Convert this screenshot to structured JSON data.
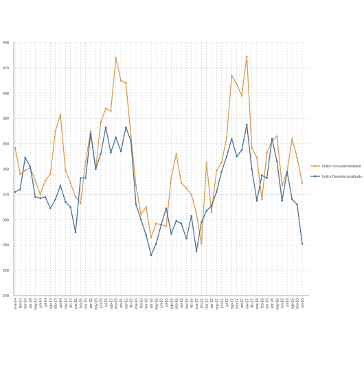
{
  "chart_data": {
    "type": "line",
    "title": "",
    "xlabel": "",
    "ylabel": "",
    "ylim": [
      240,
      440
    ],
    "yticks": [
      240,
      260,
      280,
      300,
      320,
      340,
      360,
      380,
      400,
      420,
      440
    ],
    "grid": true,
    "legend_position": "right",
    "categories": [
      "ene-14",
      "feb-14",
      "mar-14",
      "abr-14",
      "may-14",
      "jun-14",
      "jul-14",
      "ago-14",
      "sep-14",
      "oct-14",
      "nov-14",
      "dic-14",
      "ene-15",
      "feb-15",
      "mar-15",
      "abr-15",
      "may-15",
      "jun-15",
      "jul-15",
      "ago-15",
      "sep-15",
      "oct-15",
      "nov-15",
      "dic-15",
      "ene-16",
      "feb-16",
      "mar-16",
      "abr-16",
      "may-16",
      "jun-16",
      "jul-16",
      "ago-16",
      "sep-16",
      "oct-16",
      "nov-16",
      "dic-16",
      "ene-17",
      "feb-17",
      "mar-17",
      "abr-17",
      "may-17",
      "jun-17",
      "jul-17",
      "ago-17",
      "sep-17",
      "oct-17",
      "nov-17",
      "dic-17",
      "ene-18",
      "feb-18",
      "mar-18",
      "abr-18",
      "may-18",
      "jun-18",
      "jul-18",
      "ago-18",
      "sep-18",
      "oct-18"
    ],
    "series": [
      {
        "name": "Indice con Estacionalidad",
        "color": "#d99b4f",
        "values": [
          357,
          336,
          339,
          341,
          331,
          320,
          331,
          336,
          370,
          383,
          339,
          329,
          318,
          313,
          346,
          370,
          340,
          377,
          388,
          386,
          428,
          410,
          408,
          366,
          327,
          304,
          310,
          286,
          297,
          296,
          295,
          333,
          352,
          329,
          325,
          320,
          305,
          281,
          345,
          306,
          339,
          345,
          365,
          414,
          407,
          398,
          429,
          357,
          349,
          316,
          353,
          362,
          366,
          327,
          338,
          364,
          349,
          329
        ]
      },
      {
        "name": "Indice Desestacionalizado",
        "color": "#4a6f93",
        "values": [
          322,
          324,
          349,
          342,
          318,
          317,
          318,
          309,
          316,
          327,
          314,
          310,
          290,
          333,
          333,
          368,
          340,
          352,
          373,
          353,
          365,
          354,
          373,
          362,
          312,
          300,
          288,
          272,
          281,
          296,
          309,
          289,
          299,
          297,
          285,
          303,
          275,
          298,
          307,
          311,
          322,
          338,
          350,
          364,
          350,
          355,
          375,
          340,
          315,
          335,
          333,
          364,
          346,
          315,
          338,
          316,
          312,
          281
        ]
      }
    ]
  }
}
